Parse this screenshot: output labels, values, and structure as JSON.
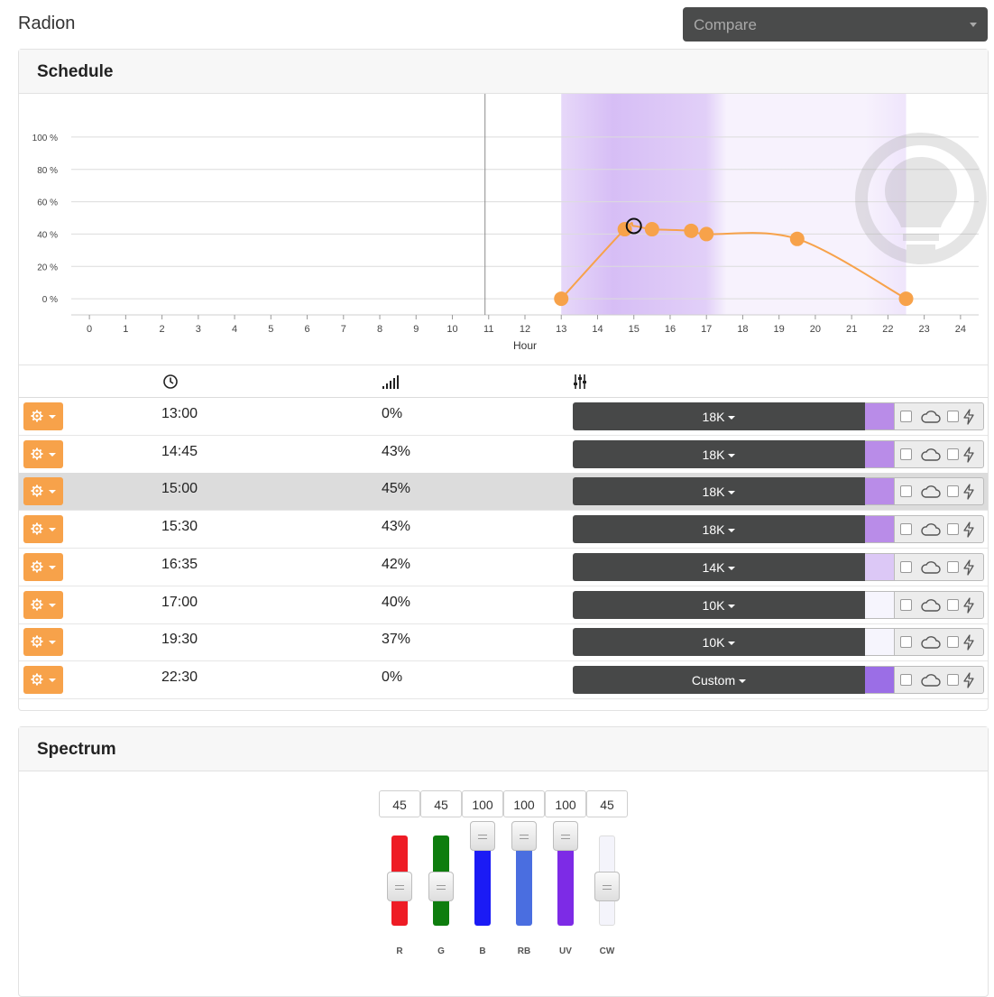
{
  "app": {
    "title": "Radion"
  },
  "compare": {
    "placeholder": "Compare"
  },
  "schedule": {
    "title": "Schedule",
    "columns": {
      "time_icon": "clock-icon",
      "intensity_icon": "signal-bars-icon",
      "settings_icon": "sliders-icon"
    },
    "rows": [
      {
        "time": "13:00",
        "intensity": "0%",
        "preset": "18K",
        "swatch": "#b98ce8",
        "selected": false
      },
      {
        "time": "14:45",
        "intensity": "43%",
        "preset": "18K",
        "swatch": "#b98ce8",
        "selected": false
      },
      {
        "time": "15:00",
        "intensity": "45%",
        "preset": "18K",
        "swatch": "#b98ce8",
        "selected": true
      },
      {
        "time": "15:30",
        "intensity": "43%",
        "preset": "18K",
        "swatch": "#b98ce8",
        "selected": false
      },
      {
        "time": "16:35",
        "intensity": "42%",
        "preset": "14K",
        "swatch": "#dcc8f6",
        "selected": false
      },
      {
        "time": "17:00",
        "intensity": "40%",
        "preset": "10K",
        "swatch": "#f6f5fd",
        "selected": false
      },
      {
        "time": "19:30",
        "intensity": "37%",
        "preset": "10K",
        "swatch": "#f6f5fd",
        "selected": false
      },
      {
        "time": "22:30",
        "intensity": "0%",
        "preset": "Custom",
        "swatch": "#9b6ee6",
        "selected": false
      }
    ]
  },
  "chart_data": {
    "type": "line",
    "xlabel": "Hour",
    "ylabel": "",
    "xlim": [
      -0.5,
      24.5
    ],
    "ylim": [
      -10,
      110
    ],
    "x_ticks": [
      0,
      1,
      2,
      3,
      4,
      5,
      6,
      7,
      8,
      9,
      10,
      11,
      12,
      13,
      14,
      15,
      16,
      17,
      18,
      19,
      20,
      21,
      22,
      23,
      24
    ],
    "y_ticks": [
      0,
      20,
      40,
      60,
      80,
      100
    ],
    "y_tick_labels": [
      "0 %",
      "20 %",
      "40 %",
      "60 %",
      "80 %",
      "100 %"
    ],
    "current_time": 10.9,
    "grid": true,
    "points": [
      {
        "x": 13.0,
        "y": 0
      },
      {
        "x": 14.75,
        "y": 43
      },
      {
        "x": 15.0,
        "y": 45
      },
      {
        "x": 15.5,
        "y": 43
      },
      {
        "x": 16.58,
        "y": 42
      },
      {
        "x": 17.0,
        "y": 40
      },
      {
        "x": 19.5,
        "y": 37
      },
      {
        "x": 22.5,
        "y": 0
      }
    ],
    "selected_index": 2,
    "line_color": "#f7a24a",
    "band_color": "#c9a8f2"
  },
  "spectrum": {
    "title": "Spectrum",
    "channels": [
      {
        "label": "R",
        "value": "45",
        "level": 45,
        "color": "#ee1c25"
      },
      {
        "label": "G",
        "value": "45",
        "level": 45,
        "color": "#0e7d0e"
      },
      {
        "label": "B",
        "value": "100",
        "level": 100,
        "color": "#1b1bf5"
      },
      {
        "label": "RB",
        "value": "100",
        "level": 100,
        "color": "#4a6ee0"
      },
      {
        "label": "UV",
        "value": "100",
        "level": 100,
        "color": "#7d2be6"
      },
      {
        "label": "CW",
        "value": "45",
        "level": 45,
        "color": "#f4f4fb"
      }
    ]
  }
}
